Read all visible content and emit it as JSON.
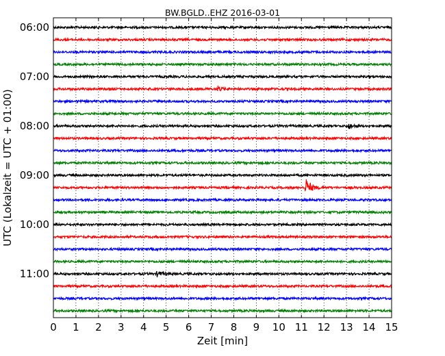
{
  "chart_data": {
    "type": "line",
    "title": "BW.BGLD..EHZ 2016-03-01",
    "xlabel": "Zeit  [min]",
    "ylabel": "UTC (Lokalzeit = UTC + 01:00)",
    "xlim": [
      0,
      15
    ],
    "x_ticks": [
      "0",
      "1",
      "2",
      "3",
      "4",
      "5",
      "6",
      "7",
      "8",
      "9",
      "10",
      "11",
      "12",
      "13",
      "14",
      "15"
    ],
    "grid": "vertical-dotted",
    "trace_colors": [
      "#000000",
      "#ff0000",
      "#0000ff",
      "#008000"
    ],
    "trace_interval_min": 15,
    "traces_start": "06:00",
    "traces_count": 24,
    "y_ticks": [
      "06:00",
      "07:00",
      "08:00",
      "09:00",
      "10:00",
      "11:00"
    ],
    "events": [
      {
        "trace_index": 5,
        "time_min": 7.3,
        "amplitude": "small"
      },
      {
        "trace_index": 8,
        "time_min": 13.1,
        "amplitude": "small"
      },
      {
        "trace_index": 13,
        "time_min": 11.2,
        "amplitude": "large"
      },
      {
        "trace_index": 20,
        "time_min": 4.6,
        "amplitude": "small"
      }
    ]
  }
}
